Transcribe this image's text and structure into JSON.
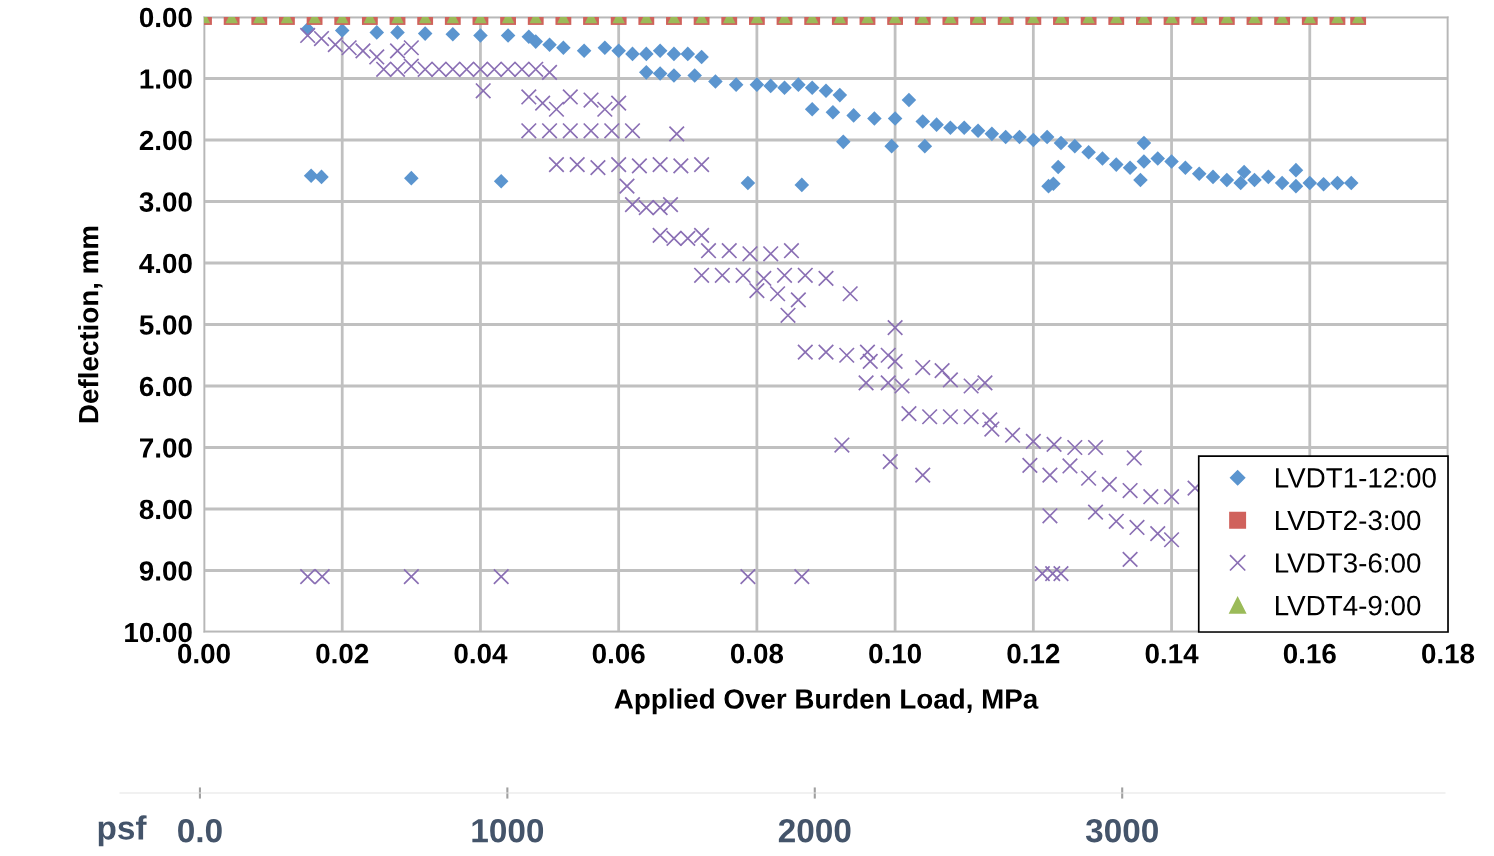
{
  "chart_data": {
    "type": "scatter",
    "xlabel": "Applied Over Burden Load, MPa",
    "ylabel": "Deflection, mm",
    "xlim": [
      0,
      0.18
    ],
    "ylim": [
      10,
      0
    ],
    "xticks": [
      {
        "value": 0,
        "label": "0.00"
      },
      {
        "value": 0.02,
        "label": "0.02"
      },
      {
        "value": 0.04,
        "label": "0.04"
      },
      {
        "value": 0.06,
        "label": "0.06"
      },
      {
        "value": 0.08,
        "label": "0.08"
      },
      {
        "value": 0.1,
        "label": "0.10"
      },
      {
        "value": 0.12,
        "label": "0.12"
      },
      {
        "value": 0.14,
        "label": "0.14"
      },
      {
        "value": 0.16,
        "label": "0.16"
      },
      {
        "value": 0.18,
        "label": "0.18"
      }
    ],
    "yticks": [
      {
        "value": 0,
        "label": "0.00"
      },
      {
        "value": 1,
        "label": "1.00"
      },
      {
        "value": 2,
        "label": "2.00"
      },
      {
        "value": 3,
        "label": "3.00"
      },
      {
        "value": 4,
        "label": "4.00"
      },
      {
        "value": 5,
        "label": "5.00"
      },
      {
        "value": 6,
        "label": "6.00"
      },
      {
        "value": 7,
        "label": "7.00"
      },
      {
        "value": 8,
        "label": "8.00"
      },
      {
        "value": 9,
        "label": "9.00"
      },
      {
        "value": 10,
        "label": "10.00"
      }
    ],
    "x2label": "psf",
    "x2lim": [
      -260,
      4050
    ],
    "x2ticks": [
      {
        "value": 0,
        "label": "0.0"
      },
      1000,
      2000,
      3000
    ],
    "grid": true,
    "legend": "lower right",
    "series": [
      {
        "name": "LVDT1-12:00",
        "color": "#5b95cf",
        "marker": "diamond",
        "x": [
          0.015,
          0.02,
          0.025,
          0.028,
          0.032,
          0.036,
          0.04,
          0.044,
          0.047,
          0.048,
          0.05,
          0.052,
          0.055,
          0.058,
          0.06,
          0.062,
          0.064,
          0.066,
          0.068,
          0.07,
          0.072,
          0.064,
          0.066,
          0.068,
          0.071,
          0.074,
          0.077,
          0.08,
          0.082,
          0.084,
          0.086,
          0.088,
          0.09,
          0.092,
          0.088,
          0.091,
          0.094,
          0.097,
          0.1,
          0.102,
          0.104,
          0.106,
          0.108,
          0.11,
          0.112,
          0.114,
          0.116,
          0.118,
          0.12,
          0.122,
          0.124,
          0.126,
          0.128,
          0.13,
          0.132,
          0.134,
          0.136,
          0.138,
          0.14,
          0.142,
          0.144,
          0.146,
          0.148,
          0.15,
          0.152,
          0.154,
          0.156,
          0.158,
          0.16,
          0.162,
          0.164,
          0.166,
          0.0155,
          0.017,
          0.03,
          0.043,
          0.0787,
          0.0865,
          0.0925,
          0.0995,
          0.1043,
          0.1229,
          0.1222,
          0.1236,
          0.136,
          0.1355,
          0.1505,
          0.158
        ],
        "values": [
          0.2,
          0.22,
          0.25,
          0.25,
          0.27,
          0.28,
          0.3,
          0.3,
          0.32,
          0.4,
          0.45,
          0.5,
          0.55,
          0.5,
          0.55,
          0.6,
          0.6,
          0.55,
          0.6,
          0.6,
          0.65,
          0.9,
          0.92,
          0.95,
          0.95,
          1.05,
          1.1,
          1.1,
          1.12,
          1.15,
          1.1,
          1.15,
          1.2,
          1.27,
          1.5,
          1.55,
          1.6,
          1.65,
          1.65,
          1.35,
          1.7,
          1.75,
          1.8,
          1.8,
          1.85,
          1.9,
          1.95,
          1.95,
          2.0,
          1.95,
          2.05,
          2.1,
          2.2,
          2.3,
          2.4,
          2.45,
          2.35,
          2.3,
          2.35,
          2.45,
          2.55,
          2.6,
          2.65,
          2.7,
          2.65,
          2.6,
          2.7,
          2.75,
          2.7,
          2.72,
          2.7,
          2.7,
          2.58,
          2.6,
          2.62,
          2.67,
          2.7,
          2.73,
          2.03,
          2.1,
          2.1,
          2.71,
          2.75,
          2.44,
          2.05,
          2.65,
          2.52,
          2.49
        ]
      },
      {
        "name": "LVDT2-3:00",
        "color": "#d0625c",
        "marker": "square",
        "x": [
          0,
          0.004,
          0.008,
          0.012,
          0.016,
          0.02,
          0.024,
          0.028,
          0.032,
          0.036,
          0.04,
          0.044,
          0.048,
          0.052,
          0.056,
          0.06,
          0.064,
          0.068,
          0.072,
          0.076,
          0.08,
          0.084,
          0.088,
          0.092,
          0.096,
          0.1,
          0.104,
          0.108,
          0.112,
          0.116,
          0.12,
          0.124,
          0.128,
          0.132,
          0.136,
          0.14,
          0.144,
          0.148,
          0.152,
          0.156,
          0.16,
          0.164,
          0.167
        ],
        "values": [
          0,
          0,
          0,
          0,
          0,
          0,
          0,
          0,
          0,
          0,
          0,
          0,
          0,
          0,
          0,
          0,
          0,
          0,
          0,
          0,
          0,
          0,
          0,
          0,
          0,
          0,
          0,
          0,
          0,
          0,
          0,
          0,
          0,
          0,
          0,
          0,
          0,
          0,
          0,
          0,
          0,
          0,
          0
        ]
      },
      {
        "name": "LVDT3-6:00",
        "color": "#8a6fb4",
        "marker": "cross",
        "x": [
          0.015,
          0.017,
          0.019,
          0.021,
          0.023,
          0.025,
          0.028,
          0.03,
          0.026,
          0.028,
          0.03,
          0.032,
          0.034,
          0.036,
          0.038,
          0.04,
          0.042,
          0.044,
          0.046,
          0.048,
          0.05,
          0.0404,
          0.047,
          0.049,
          0.051,
          0.053,
          0.056,
          0.058,
          0.06,
          0.047,
          0.05,
          0.053,
          0.056,
          0.059,
          0.062,
          0.0684,
          0.051,
          0.054,
          0.057,
          0.06,
          0.063,
          0.066,
          0.069,
          0.072,
          0.0612,
          0.062,
          0.064,
          0.066,
          0.0675,
          0.066,
          0.068,
          0.07,
          0.072,
          0.073,
          0.076,
          0.079,
          0.082,
          0.085,
          0.072,
          0.075,
          0.078,
          0.081,
          0.084,
          0.087,
          0.09,
          0.08,
          0.083,
          0.086,
          0.0845,
          0.0935,
          0.087,
          0.09,
          0.093,
          0.096,
          0.099,
          0.1,
          0.0964,
          0.1,
          0.104,
          0.1068,
          0.0958,
          0.099,
          0.101,
          0.102,
          0.105,
          0.108,
          0.111,
          0.1137,
          0.108,
          0.111,
          0.113,
          0.114,
          0.117,
          0.12,
          0.123,
          0.126,
          0.129,
          0.1253,
          0.128,
          0.131,
          0.134,
          0.137,
          0.14,
          0.129,
          0.132,
          0.135,
          0.138,
          0.14,
          0.1346,
          0.1434,
          0.134,
          0.0923,
          0.0993,
          0.104,
          0.1195,
          0.1224,
          0.1224,
          0.015,
          0.0171,
          0.03,
          0.043,
          0.0787,
          0.0865,
          0.1213,
          0.1228,
          0.124
        ],
        "values": [
          0.3,
          0.35,
          0.45,
          0.5,
          0.55,
          0.65,
          0.55,
          0.5,
          0.85,
          0.85,
          0.8,
          0.85,
          0.85,
          0.85,
          0.85,
          0.85,
          0.85,
          0.85,
          0.85,
          0.85,
          0.9,
          1.2,
          1.3,
          1.4,
          1.5,
          1.3,
          1.35,
          1.5,
          1.4,
          1.85,
          1.85,
          1.85,
          1.85,
          1.85,
          1.85,
          1.9,
          2.4,
          2.4,
          2.45,
          2.4,
          2.42,
          2.4,
          2.42,
          2.4,
          2.75,
          3.05,
          3.1,
          3.1,
          3.05,
          3.55,
          3.6,
          3.6,
          3.55,
          3.8,
          3.8,
          3.85,
          3.85,
          3.8,
          4.2,
          4.2,
          4.2,
          4.25,
          4.2,
          4.2,
          4.25,
          4.45,
          4.5,
          4.6,
          4.85,
          4.5,
          5.45,
          5.45,
          5.5,
          5.45,
          5.5,
          5.05,
          5.6,
          5.6,
          5.7,
          5.75,
          5.95,
          5.95,
          6.0,
          6.45,
          6.5,
          6.5,
          6.5,
          6.55,
          5.9,
          6.0,
          5.95,
          6.7,
          6.8,
          6.9,
          6.95,
          7.0,
          7.0,
          7.3,
          7.5,
          7.6,
          7.7,
          7.8,
          7.8,
          8.05,
          8.2,
          8.3,
          8.4,
          8.5,
          7.17,
          7.66,
          8.82,
          6.96,
          7.23,
          7.45,
          7.29,
          7.45,
          8.11,
          9.1,
          9.1,
          9.1,
          9.1,
          9.1,
          9.1,
          9.05,
          9.05,
          9.05
        ]
      },
      {
        "name": "LVDT4-9:00",
        "color": "#9bbb59",
        "marker": "triangle",
        "x": [
          0,
          0.004,
          0.008,
          0.012,
          0.016,
          0.02,
          0.024,
          0.028,
          0.032,
          0.036,
          0.04,
          0.044,
          0.048,
          0.052,
          0.056,
          0.06,
          0.064,
          0.068,
          0.072,
          0.076,
          0.08,
          0.084,
          0.088,
          0.092,
          0.096,
          0.1,
          0.104,
          0.108,
          0.112,
          0.116,
          0.12,
          0.124,
          0.128,
          0.132,
          0.136,
          0.14,
          0.144,
          0.148,
          0.152,
          0.156,
          0.16,
          0.164,
          0.167
        ],
        "values": [
          0,
          0,
          0,
          0,
          0,
          0,
          0,
          0,
          0,
          0,
          0,
          0,
          0,
          0,
          0,
          0,
          0,
          0,
          0,
          0,
          0,
          0,
          0,
          0,
          0,
          0,
          0,
          0,
          0,
          0,
          0,
          0,
          0,
          0,
          0,
          0,
          0,
          0,
          0,
          0,
          0,
          0,
          0
        ]
      }
    ]
  }
}
